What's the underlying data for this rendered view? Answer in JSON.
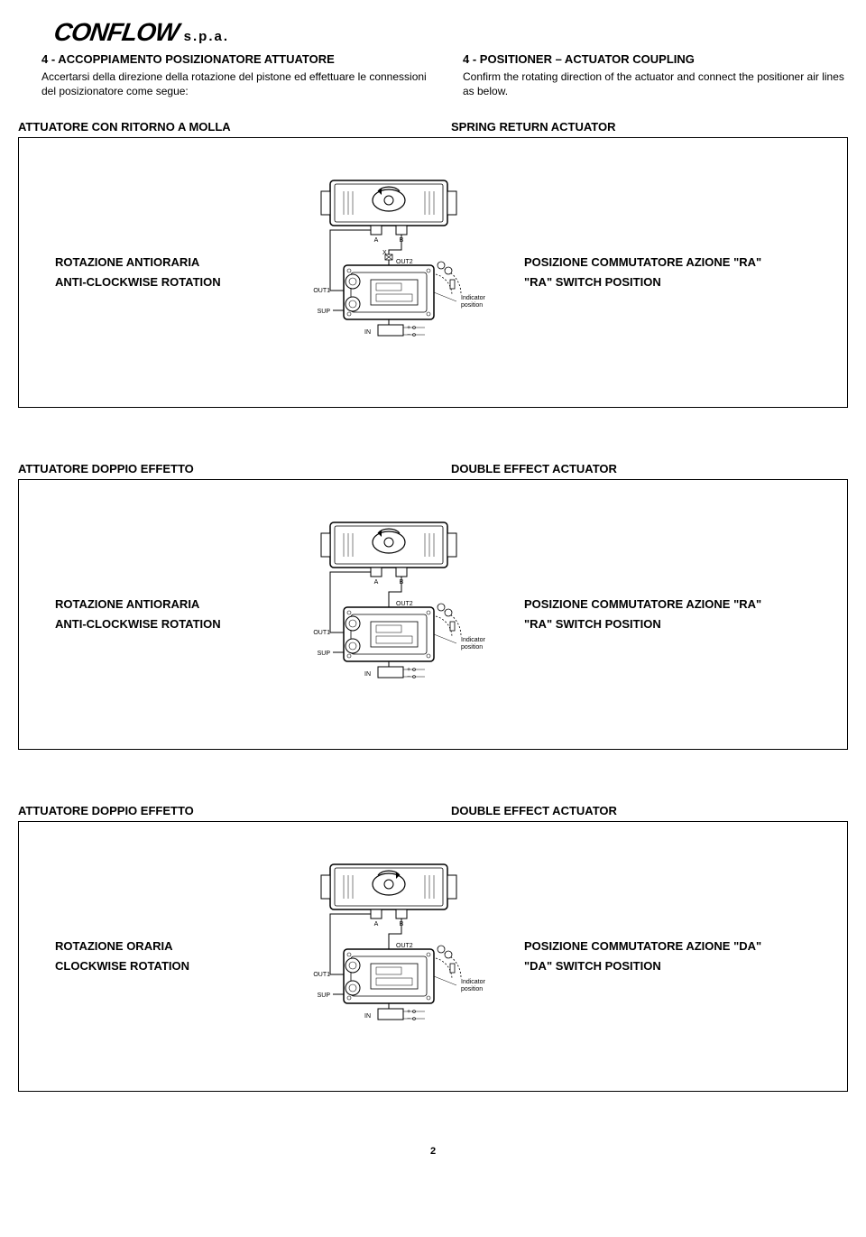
{
  "logo": {
    "main": "CONFLOW",
    "sub": "s.p.a."
  },
  "intro": {
    "left": {
      "title": "4 -  ACCOPPIAMENTO POSIZIONATORE ATTUATORE",
      "body": "Accertarsi della direzione della rotazione del pistone ed effettuare le connessioni del posizionatore come segue:"
    },
    "right": {
      "title": "4 - POSITIONER – ACTUATOR COUPLING",
      "body": "Confirm the rotating direction of the actuator and connect the positioner air lines as below."
    }
  },
  "sections": [
    {
      "header_left": "ATTUATORE CON RITORNO A MOLLA",
      "header_right": "SPRING RETURN ACTUATOR",
      "left_line1": "ROTAZIONE ANTIORARIA",
      "left_line2": "ANTI-CLOCKWISE ROTATION",
      "right_line1": "POSIZIONE COMMUTATORE AZIONE \"RA\"",
      "right_line2": "\"RA\" SWITCH POSITION",
      "diagram": {
        "port_a": "A",
        "port_b": "B",
        "port_x": "X",
        "out1": "OUT1",
        "out2": "OUT2",
        "sup": "SUP",
        "in": "IN",
        "indicator": "Indicator position",
        "arrow_dir": "ccw",
        "out2_blocked": true
      }
    },
    {
      "header_left": "ATTUATORE DOPPIO EFFETTO",
      "header_right": "DOUBLE EFFECT ACTUATOR",
      "left_line1": "ROTAZIONE ANTIORARIA",
      "left_line2": "ANTI-CLOCKWISE ROTATION",
      "right_line1": "POSIZIONE COMMUTATORE AZIONE \"RA\"",
      "right_line2": "\"RA\" SWITCH POSITION",
      "diagram": {
        "port_a": "A",
        "port_b": "B",
        "out1": "OUT1",
        "out2": "OUT2",
        "sup": "SUP",
        "in": "IN",
        "indicator": "Indicator position",
        "arrow_dir": "ccw",
        "out2_blocked": false
      }
    },
    {
      "header_left": "ATTUATORE DOPPIO EFFETTO",
      "header_right": "DOUBLE EFFECT ACTUATOR",
      "left_line1": "ROTAZIONE ORARIA",
      "left_line2": "CLOCKWISE ROTATION",
      "right_line1": "POSIZIONE COMMUTATORE AZIONE \"DA\"",
      "right_line2": "\"DA\" SWITCH POSITION",
      "diagram": {
        "port_a": "A",
        "port_b": "B",
        "out1": "OUT1",
        "out2": "OUT2",
        "sup": "SUP",
        "in": "IN",
        "indicator": "Indicator position",
        "arrow_dir": "cw",
        "out2_blocked": false
      }
    }
  ],
  "page_number": "2",
  "colors": {
    "text": "#000000",
    "bg": "#ffffff",
    "stroke": "#000000",
    "fill_light": "#ffffff",
    "fill_grey": "#c8c8c8"
  }
}
